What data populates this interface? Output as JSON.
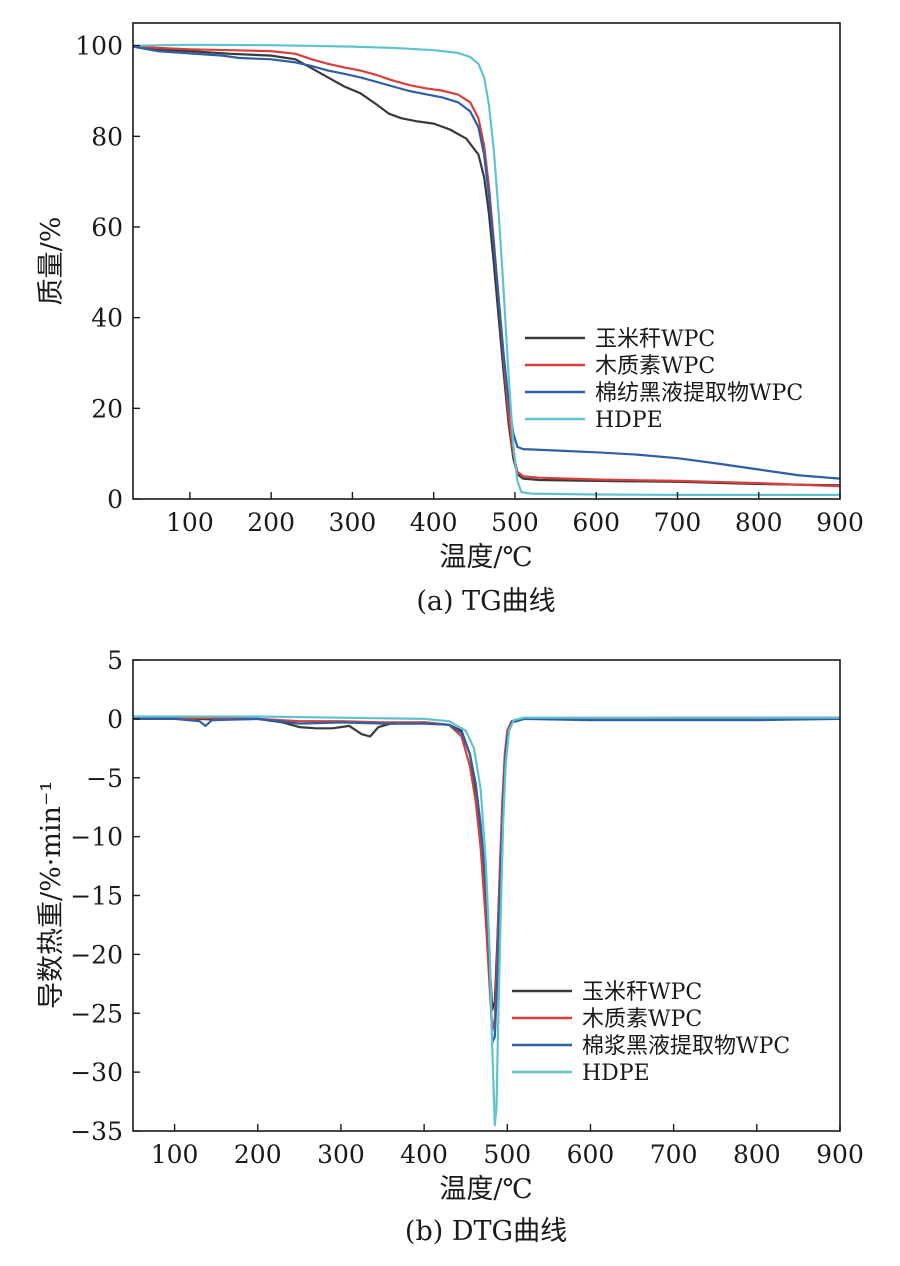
{
  "chart_data": [
    {
      "type": "line",
      "caption": "(a) TG曲线",
      "xlabel": "温度/℃",
      "ylabel": "质量/%",
      "xlim": [
        30,
        900
      ],
      "ylim": [
        0,
        105
      ],
      "xticks": [
        100,
        200,
        300,
        400,
        500,
        600,
        700,
        800,
        900
      ],
      "yticks": [
        0,
        20,
        40,
        60,
        80,
        100
      ],
      "legend_position": "lower-right",
      "series": [
        {
          "name": "玉米秆WPC",
          "color": "#3a3a3a",
          "points": [
            [
              30,
              100
            ],
            [
              60,
              99.2
            ],
            [
              100,
              98.8
            ],
            [
              150,
              98.2
            ],
            [
              200,
              97.8
            ],
            [
              230,
              97
            ],
            [
              250,
              95
            ],
            [
              270,
              93
            ],
            [
              290,
              91
            ],
            [
              310,
              89.5
            ],
            [
              330,
              87
            ],
            [
              345,
              85
            ],
            [
              360,
              84
            ],
            [
              380,
              83.3
            ],
            [
              400,
              82.8
            ],
            [
              420,
              81.5
            ],
            [
              440,
              79.5
            ],
            [
              455,
              76
            ],
            [
              462,
              71
            ],
            [
              468,
              63
            ],
            [
              474,
              52
            ],
            [
              480,
              40
            ],
            [
              486,
              28
            ],
            [
              492,
              17
            ],
            [
              498,
              9
            ],
            [
              503,
              5.5
            ],
            [
              510,
              4.5
            ],
            [
              530,
              4.2
            ],
            [
              600,
              4
            ],
            [
              700,
              3.8
            ],
            [
              800,
              3.3
            ],
            [
              900,
              3
            ]
          ]
        },
        {
          "name": "木质素WPC",
          "color": "#d9403a",
          "points": [
            [
              30,
              100
            ],
            [
              60,
              99.5
            ],
            [
              100,
              99.2
            ],
            [
              150,
              99
            ],
            [
              200,
              98.8
            ],
            [
              230,
              98.2
            ],
            [
              250,
              97
            ],
            [
              270,
              96
            ],
            [
              290,
              95.2
            ],
            [
              310,
              94.5
            ],
            [
              330,
              93.5
            ],
            [
              350,
              92.3
            ],
            [
              370,
              91.3
            ],
            [
              390,
              90.6
            ],
            [
              410,
              90.1
            ],
            [
              430,
              89.2
            ],
            [
              445,
              87.5
            ],
            [
              455,
              84
            ],
            [
              462,
              78
            ],
            [
              468,
              69
            ],
            [
              474,
              57
            ],
            [
              480,
              44
            ],
            [
              486,
              31
            ],
            [
              492,
              19
            ],
            [
              498,
              10
            ],
            [
              503,
              6
            ],
            [
              510,
              5
            ],
            [
              530,
              4.7
            ],
            [
              600,
              4.3
            ],
            [
              700,
              4
            ],
            [
              800,
              3.5
            ],
            [
              900,
              2.8
            ]
          ]
        },
        {
          "name": "棉纺黑液提取物WPC",
          "color": "#2e5fa6",
          "points": [
            [
              30,
              99.8
            ],
            [
              60,
              98.8
            ],
            [
              100,
              98.3
            ],
            [
              140,
              97.8
            ],
            [
              160,
              97.3
            ],
            [
              200,
              97
            ],
            [
              230,
              96.3
            ],
            [
              250,
              95.5
            ],
            [
              270,
              94.5
            ],
            [
              290,
              93.8
            ],
            [
              310,
              93
            ],
            [
              330,
              92
            ],
            [
              350,
              91
            ],
            [
              370,
              90
            ],
            [
              390,
              89.3
            ],
            [
              410,
              88.6
            ],
            [
              430,
              87.5
            ],
            [
              445,
              85.5
            ],
            [
              455,
              82
            ],
            [
              462,
              76
            ],
            [
              468,
              67
            ],
            [
              474,
              56
            ],
            [
              480,
              44
            ],
            [
              486,
              32
            ],
            [
              492,
              22
            ],
            [
              498,
              14.5
            ],
            [
              503,
              11.5
            ],
            [
              510,
              11
            ],
            [
              550,
              10.7
            ],
            [
              600,
              10.3
            ],
            [
              650,
              9.8
            ],
            [
              700,
              9
            ],
            [
              750,
              7.8
            ],
            [
              800,
              6.5
            ],
            [
              850,
              5.2
            ],
            [
              900,
              4.5
            ]
          ]
        },
        {
          "name": "HDPE",
          "color": "#5fc3ce",
          "points": [
            [
              30,
              100
            ],
            [
              100,
              100.2
            ],
            [
              200,
              100.1
            ],
            [
              300,
              99.8
            ],
            [
              350,
              99.5
            ],
            [
              400,
              99
            ],
            [
              430,
              98.4
            ],
            [
              445,
              97.5
            ],
            [
              455,
              96
            ],
            [
              462,
              93
            ],
            [
              468,
              87
            ],
            [
              474,
              77
            ],
            [
              480,
              63
            ],
            [
              486,
              46
            ],
            [
              492,
              28
            ],
            [
              498,
              12
            ],
            [
              503,
              4
            ],
            [
              508,
              1.5
            ],
            [
              520,
              1.2
            ],
            [
              600,
              1
            ],
            [
              700,
              0.9
            ],
            [
              800,
              0.9
            ],
            [
              900,
              0.9
            ]
          ]
        }
      ]
    },
    {
      "type": "line",
      "caption": "(b) DTG曲线",
      "xlabel": "温度/℃",
      "ylabel": "导数热重/%·min⁻¹",
      "xlim": [
        50,
        900
      ],
      "ylim": [
        -35,
        5
      ],
      "xticks": [
        100,
        200,
        300,
        400,
        500,
        600,
        700,
        800,
        900
      ],
      "yticks": [
        5,
        0,
        -5,
        -10,
        -15,
        -20,
        -25,
        -30,
        -35
      ],
      "legend_position": "lower-right",
      "series": [
        {
          "name": "玉米秆WPC",
          "color": "#3a3a3a",
          "points": [
            [
              50,
              0
            ],
            [
              100,
              0.05
            ],
            [
              150,
              -0.05
            ],
            [
              200,
              0
            ],
            [
              230,
              -0.3
            ],
            [
              250,
              -0.7
            ],
            [
              270,
              -0.8
            ],
            [
              290,
              -0.8
            ],
            [
              310,
              -0.6
            ],
            [
              325,
              -1.3
            ],
            [
              335,
              -1.5
            ],
            [
              345,
              -0.7
            ],
            [
              360,
              -0.4
            ],
            [
              400,
              -0.3
            ],
            [
              430,
              -0.5
            ],
            [
              445,
              -1
            ],
            [
              455,
              -3
            ],
            [
              462,
              -6
            ],
            [
              468,
              -10
            ],
            [
              474,
              -15
            ],
            [
              479,
              -21
            ],
            [
              482,
              -24.7
            ],
            [
              485,
              -24
            ],
            [
              488,
              -19
            ],
            [
              491,
              -13
            ],
            [
              494,
              -8
            ],
            [
              497,
              -4
            ],
            [
              500,
              -1.5
            ],
            [
              505,
              -0.3
            ],
            [
              520,
              0
            ],
            [
              600,
              0
            ],
            [
              700,
              0.05
            ],
            [
              800,
              0.05
            ],
            [
              900,
              0.1
            ]
          ]
        },
        {
          "name": "木质素WPC",
          "color": "#d9403a",
          "points": [
            [
              50,
              0
            ],
            [
              100,
              0
            ],
            [
              150,
              0.1
            ],
            [
              200,
              0
            ],
            [
              250,
              -0.2
            ],
            [
              300,
              -0.2
            ],
            [
              350,
              -0.3
            ],
            [
              400,
              -0.3
            ],
            [
              430,
              -0.5
            ],
            [
              445,
              -1.5
            ],
            [
              455,
              -4
            ],
            [
              462,
              -7
            ],
            [
              468,
              -11
            ],
            [
              474,
              -17
            ],
            [
              479,
              -23
            ],
            [
              482,
              -26.5
            ],
            [
              485,
              -25.5
            ],
            [
              488,
              -20
            ],
            [
              491,
              -13
            ],
            [
              494,
              -7
            ],
            [
              497,
              -3
            ],
            [
              500,
              -1
            ],
            [
              505,
              -0.2
            ],
            [
              520,
              0
            ],
            [
              600,
              0
            ],
            [
              700,
              0.1
            ],
            [
              800,
              0.1
            ],
            [
              900,
              0.1
            ]
          ]
        },
        {
          "name": "棉浆黑液提取物WPC",
          "color": "#2e5fa6",
          "points": [
            [
              50,
              0
            ],
            [
              100,
              0
            ],
            [
              130,
              -0.2
            ],
            [
              137,
              -0.6
            ],
            [
              145,
              -0.1
            ],
            [
              200,
              0
            ],
            [
              250,
              -0.4
            ],
            [
              300,
              -0.3
            ],
            [
              350,
              -0.4
            ],
            [
              400,
              -0.4
            ],
            [
              430,
              -0.5
            ],
            [
              445,
              -1.2
            ],
            [
              455,
              -3
            ],
            [
              462,
              -5.5
            ],
            [
              468,
              -9
            ],
            [
              474,
              -14
            ],
            [
              479,
              -21
            ],
            [
              482,
              -27.5
            ],
            [
              485,
              -27
            ],
            [
              488,
              -22
            ],
            [
              491,
              -15
            ],
            [
              494,
              -9
            ],
            [
              497,
              -4
            ],
            [
              500,
              -1.5
            ],
            [
              505,
              -0.3
            ],
            [
              520,
              0
            ],
            [
              600,
              -0.1
            ],
            [
              700,
              -0.1
            ],
            [
              800,
              -0.1
            ],
            [
              900,
              0
            ]
          ]
        },
        {
          "name": "HDPE",
          "color": "#5fc3ce",
          "points": [
            [
              50,
              0.2
            ],
            [
              100,
              0.2
            ],
            [
              200,
              0.2
            ],
            [
              300,
              0.1
            ],
            [
              400,
              0
            ],
            [
              430,
              -0.2
            ],
            [
              450,
              -1
            ],
            [
              460,
              -2.5
            ],
            [
              468,
              -6
            ],
            [
              474,
              -12
            ],
            [
              479,
              -20
            ],
            [
              482,
              -28
            ],
            [
              485,
              -34.5
            ],
            [
              487,
              -33
            ],
            [
              489,
              -26
            ],
            [
              492,
              -17
            ],
            [
              495,
              -9
            ],
            [
              498,
              -4
            ],
            [
              502,
              -1
            ],
            [
              508,
              -0.1
            ],
            [
              520,
              0.1
            ],
            [
              600,
              0.1
            ],
            [
              700,
              0.1
            ],
            [
              800,
              0.1
            ],
            [
              900,
              0.1
            ]
          ]
        }
      ]
    }
  ]
}
